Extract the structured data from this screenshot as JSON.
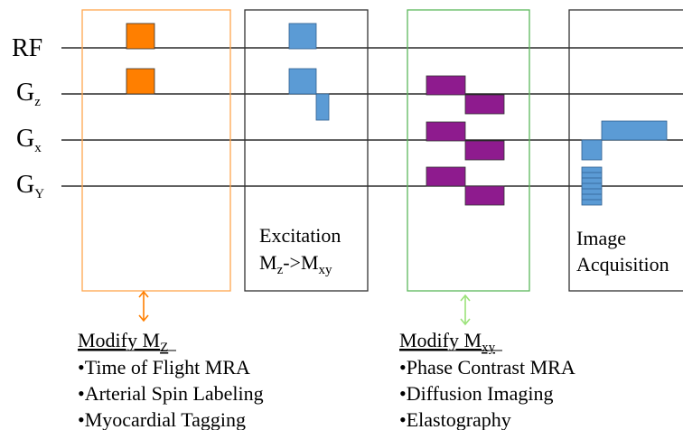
{
  "axes": {
    "rf": "RF",
    "gz": {
      "main": "G",
      "sub": "z"
    },
    "gx": {
      "main": "G",
      "sub": "x"
    },
    "gy": {
      "main": "G",
      "sub": "Y"
    }
  },
  "excitation": {
    "title": "Excitation",
    "line2": {
      "m1": "M",
      "s1": "z",
      "arrow": "->",
      "m2": "M",
      "s2": "xy"
    }
  },
  "acquisition": {
    "line1": "Image",
    "line2": "Acquisition"
  },
  "modify_mz": {
    "heading": {
      "main": "Modify M",
      "sub": "Z"
    },
    "items": [
      "•Time of Flight MRA",
      "•Arterial Spin Labeling",
      "•Myocardial Tagging"
    ]
  },
  "modify_mxy": {
    "heading": {
      "main": "Modify M",
      "sub": "xy"
    },
    "items": [
      "•Phase Contrast MRA",
      "•Diffusion Imaging",
      "•Elastography"
    ]
  },
  "colors": {
    "orange": "#ff7f00",
    "blue": "#5b9bd5",
    "purple": "#8e1b8e",
    "green_box": "#5cb85c",
    "orange_box": "#ffa64d",
    "light_green_arrow": "#9be27a",
    "line": "#000000",
    "box": "#333333"
  }
}
